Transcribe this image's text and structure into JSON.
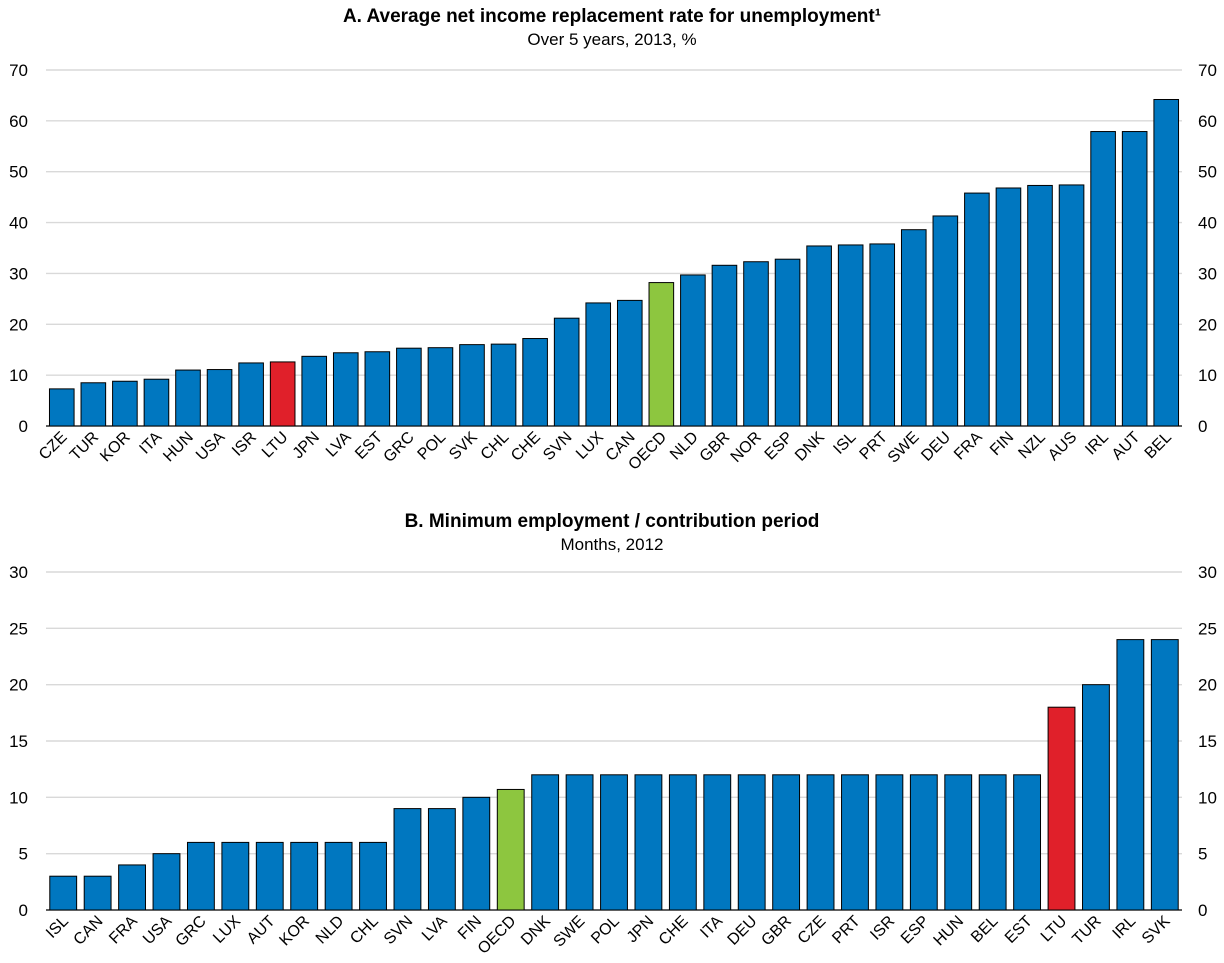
{
  "colors": {
    "default": "#0077c0",
    "highlight": "#e0202a",
    "oecd": "#8dc63f",
    "grid": "#d9d9d9"
  },
  "chart_data": [
    {
      "type": "bar",
      "title": "A. Average net income replacement rate for unemployment¹",
      "subtitle": "Over 5 years, 2013, %",
      "xlabel": "",
      "ylabel": "",
      "ylim": [
        0,
        70
      ],
      "yticks": [
        0,
        10,
        20,
        30,
        40,
        50,
        60,
        70
      ],
      "grid": true,
      "highlight": {
        "LTU": "highlight",
        "OECD": "oecd"
      },
      "categories": [
        "CZE",
        "TUR",
        "KOR",
        "ITA",
        "HUN",
        "USA",
        "ISR",
        "LTU",
        "JPN",
        "LVA",
        "EST",
        "GRC",
        "POL",
        "SVK",
        "CHL",
        "CHE",
        "SVN",
        "LUX",
        "CAN",
        "OECD",
        "NLD",
        "GBR",
        "NOR",
        "ESP",
        "DNK",
        "ISL",
        "PRT",
        "SWE",
        "DEU",
        "FRA",
        "FIN",
        "NZL",
        "AUS",
        "IRL",
        "AUT",
        "BEL"
      ],
      "values": [
        7.3,
        8.5,
        8.8,
        9.2,
        11.0,
        11.1,
        12.4,
        12.6,
        13.7,
        14.4,
        14.6,
        15.3,
        15.4,
        16.0,
        16.1,
        17.2,
        21.2,
        24.2,
        24.7,
        28.2,
        29.7,
        31.6,
        32.3,
        32.8,
        35.4,
        35.6,
        35.8,
        38.6,
        41.3,
        45.8,
        46.8,
        47.3,
        47.4,
        57.9,
        57.9,
        64.2
      ]
    },
    {
      "type": "bar",
      "title": "B.  Minimum employment / contribution period",
      "subtitle": "Months, 2012",
      "xlabel": "",
      "ylabel": "",
      "ylim": [
        0,
        30
      ],
      "yticks": [
        0,
        5,
        10,
        15,
        20,
        25,
        30
      ],
      "grid": true,
      "highlight": {
        "LTU": "highlight",
        "OECD": "oecd"
      },
      "categories": [
        "ISL",
        "CAN",
        "FRA",
        "USA",
        "GRC",
        "LUX",
        "AUT",
        "KOR",
        "NLD",
        "CHL",
        "SVN",
        "LVA",
        "FIN",
        "OECD",
        "DNK",
        "SWE",
        "POL",
        "JPN",
        "CHE",
        "ITA",
        "DEU",
        "GBR",
        "CZE",
        "PRT",
        "ISR",
        "ESP",
        "HUN",
        "BEL",
        "EST",
        "LTU",
        "TUR",
        "IRL",
        "SVK"
      ],
      "values": [
        3,
        3,
        4,
        5,
        6,
        6,
        6,
        6,
        6,
        6,
        9,
        9,
        10,
        10.7,
        12,
        12,
        12,
        12,
        12,
        12,
        12,
        12,
        12,
        12,
        12,
        12,
        12,
        12,
        12,
        18,
        20,
        24,
        24
      ]
    }
  ]
}
